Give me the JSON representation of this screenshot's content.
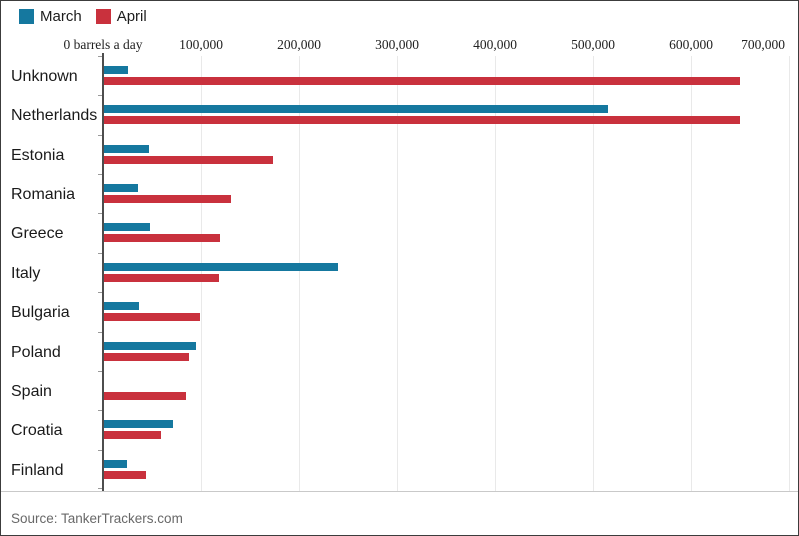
{
  "frame": {
    "background": "#ffffff",
    "border_color": "#3c3c3c"
  },
  "legend": {
    "items": [
      {
        "label": "March",
        "color": "#15789f"
      },
      {
        "label": "April",
        "color": "#c9313d"
      }
    ]
  },
  "source": {
    "label": "Source: TankerTrackers.com"
  },
  "chart_data": {
    "type": "bar",
    "orientation": "horizontal",
    "title": "",
    "xlabel": "barrels a day",
    "ylabel": "",
    "legend_position": "top-left",
    "grid": true,
    "categories": [
      "Unknown",
      "Netherlands",
      "Estonia",
      "Romania",
      "Greece",
      "Italy",
      "Bulgaria",
      "Poland",
      "Spain",
      "Croatia",
      "Finland"
    ],
    "series": [
      {
        "name": "March",
        "color": "#15789f",
        "values": [
          25000,
          515000,
          47000,
          36000,
          48000,
          240000,
          37000,
          95000,
          0,
          71000,
          24000
        ]
      },
      {
        "name": "April",
        "color": "#c9313d",
        "values": [
          650000,
          650000,
          173000,
          131000,
          119000,
          118000,
          99000,
          88000,
          85000,
          59000,
          44000
        ]
      }
    ],
    "x_axis": {
      "min": 0,
      "max": 700000,
      "ticks": [
        0,
        100000,
        200000,
        300000,
        400000,
        500000,
        600000,
        700000
      ],
      "tick_labels": [
        "0 barrels a day",
        "100,000",
        "200,000",
        "300,000",
        "400,000",
        "500,000",
        "600,000",
        "700,000"
      ]
    }
  }
}
